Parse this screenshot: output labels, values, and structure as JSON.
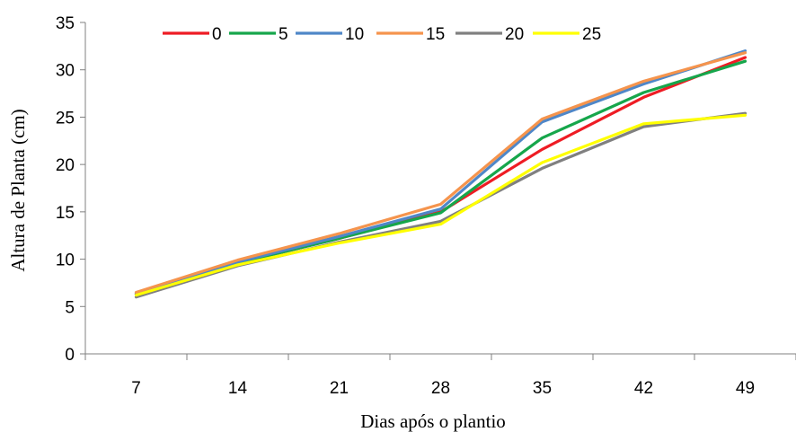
{
  "chart_data": {
    "type": "line",
    "xlabel": "Dias após o plantio",
    "ylabel": "Altura de Planta (cm)",
    "categories": [
      "7",
      "14",
      "21",
      "28",
      "35",
      "42",
      "49"
    ],
    "ylim": [
      0,
      35
    ],
    "yticks": [
      "0",
      "5",
      "10",
      "15",
      "20",
      "25",
      "30",
      "35"
    ],
    "grid": false,
    "legend_position": "top",
    "series": [
      {
        "name": "0",
        "color": "#ee1c24",
        "values": [
          6.3,
          9.6,
          12.2,
          15.0,
          21.6,
          27.1,
          31.3
        ]
      },
      {
        "name": "5",
        "color": "#16a64b",
        "values": [
          6.3,
          9.6,
          12.2,
          14.9,
          22.8,
          27.6,
          30.9
        ]
      },
      {
        "name": "10",
        "color": "#4f87c8",
        "values": [
          6.4,
          9.7,
          12.4,
          15.3,
          24.5,
          28.5,
          32.0
        ]
      },
      {
        "name": "15",
        "color": "#f5944d",
        "values": [
          6.5,
          9.9,
          12.7,
          15.8,
          24.8,
          28.8,
          31.8
        ]
      },
      {
        "name": "20",
        "color": "#808080",
        "values": [
          6.0,
          9.3,
          11.8,
          14.0,
          19.6,
          24.0,
          25.4
        ]
      },
      {
        "name": "25",
        "color": "#ffff00",
        "values": [
          6.2,
          9.4,
          11.7,
          13.7,
          20.2,
          24.3,
          25.2
        ]
      }
    ]
  }
}
